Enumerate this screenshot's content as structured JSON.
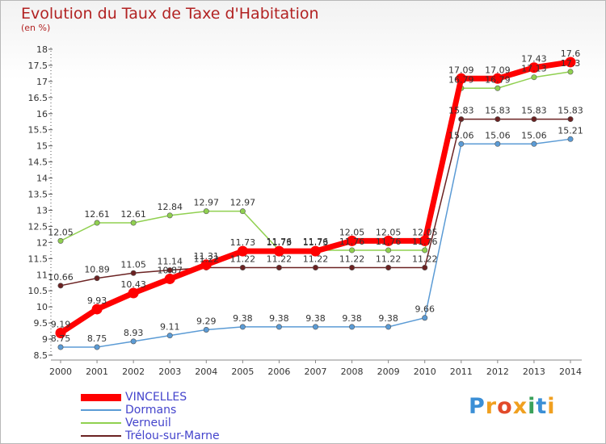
{
  "header": {
    "title": "Evolution du Taux de Taxe d'Habitation",
    "unit": "(en %)"
  },
  "logo": {
    "text": "Proxiti"
  },
  "chart_data": {
    "type": "line",
    "title": "Evolution du Taux de Taxe d'Habitation",
    "ylabel": "(en %)",
    "xlabel": "",
    "x": [
      "2000",
      "2001",
      "2002",
      "2003",
      "2004",
      "2005",
      "2006",
      "2007",
      "2008",
      "2009",
      "2010",
      "2011",
      "2012",
      "2013",
      "2014"
    ],
    "ylim": [
      8.5,
      18
    ],
    "yticks": [
      8.5,
      9,
      9.5,
      10,
      10.5,
      11,
      11.5,
      12,
      12.5,
      13,
      13.5,
      14,
      14.5,
      15,
      15.5,
      16,
      16.5,
      17,
      17.5,
      18
    ],
    "grid": false,
    "legend_position": "bottom-left",
    "series": [
      {
        "name": "VINCELLES",
        "color": "#ff0000",
        "values": [
          9.19,
          9.93,
          10.43,
          10.87,
          11.31,
          11.73,
          11.73,
          11.73,
          12.05,
          12.05,
          12.05,
          17.09,
          17.09,
          17.43,
          17.6
        ],
        "labels": [
          "9.19",
          "9.93",
          "10.43",
          "10.87",
          "11.31",
          "11.73",
          "11.73",
          "11.73",
          "12.05",
          "12.05",
          "12.05",
          "17.09",
          "17.09",
          "17.43",
          "17.6"
        ]
      },
      {
        "name": "Dormans",
        "color": "#5b9bd5",
        "values": [
          8.75,
          8.75,
          8.93,
          9.11,
          9.29,
          9.38,
          9.38,
          9.38,
          9.38,
          9.38,
          9.66,
          15.06,
          15.06,
          15.06,
          15.21
        ],
        "labels": [
          "8.75",
          "8.75",
          "8.93",
          "9.11",
          "9.29",
          "9.38",
          "9.38",
          "9.38",
          "9.38",
          "9.38",
          "9.66",
          "15.06",
          "15.06",
          "15.06",
          "15.21"
        ]
      },
      {
        "name": "Verneuil",
        "color": "#90d050",
        "values": [
          12.05,
          12.61,
          12.61,
          12.84,
          12.97,
          12.97,
          11.76,
          11.76,
          11.76,
          11.76,
          11.76,
          16.79,
          16.79,
          17.13,
          17.3
        ],
        "labels": [
          "12.05",
          "12.61",
          "12.61",
          "12.84",
          "12.97",
          "12.97",
          "11.76",
          "11.76",
          "11.76",
          "11.76",
          "11.76",
          "16.79",
          "16.79",
          "17.13",
          "17.3"
        ]
      },
      {
        "name": "Trélou-sur-Marne",
        "color": "#6b2222",
        "values": [
          10.66,
          10.89,
          11.05,
          11.14,
          11.22,
          11.22,
          11.22,
          11.22,
          11.22,
          11.22,
          11.22,
          15.83,
          15.83,
          15.83,
          15.83
        ],
        "labels": [
          "10.66",
          "10.89",
          "11.05",
          "11.14",
          "11.22",
          "11.22",
          "11.22",
          "11.22",
          "11.22",
          "11.22",
          "11.22",
          "15.83",
          "15.83",
          "15.83",
          "15.83"
        ]
      }
    ]
  }
}
